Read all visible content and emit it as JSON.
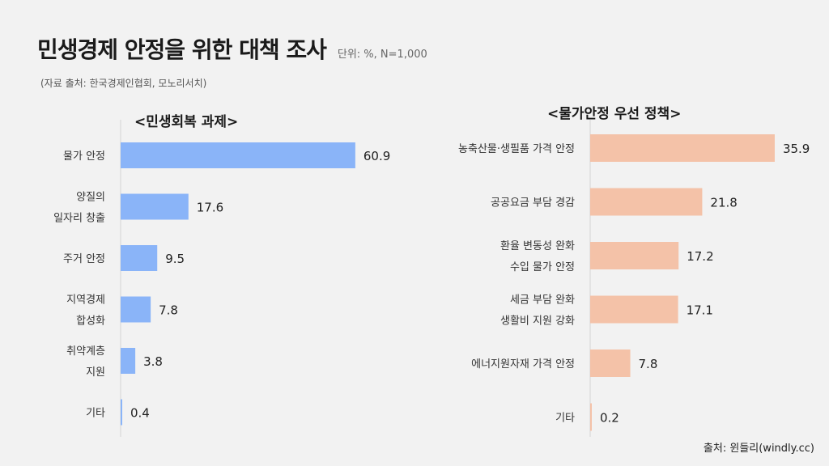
{
  "header": {
    "title": "민생경제 안정을 위한 대책 조사",
    "unit": "단위: %, N=1,000",
    "source": "(자료 출처: 한국경제인협회, 모노리서치)"
  },
  "footer": {
    "credit": "출처: 윈들리(windly.cc)"
  },
  "chart_data": [
    {
      "type": "bar",
      "orientation": "horizontal",
      "title": "<민생회복 과제>",
      "categories": [
        [
          "물가 안정"
        ],
        [
          "양질의",
          "일자리 창출"
        ],
        [
          "주거 안정"
        ],
        [
          "지역경제",
          "합성화"
        ],
        [
          "취약계층",
          "지원"
        ],
        [
          "기타"
        ]
      ],
      "values": [
        60.9,
        17.6,
        9.5,
        7.8,
        3.8,
        0.4
      ],
      "value_labels": [
        "60.9",
        "17.6",
        "9.5",
        "7.8",
        "3.8",
        "0.4"
      ],
      "color": "#8ab4f8",
      "xlim": [
        0,
        100
      ]
    },
    {
      "type": "bar",
      "orientation": "horizontal",
      "title": "<물가안정 우선 정책>",
      "categories": [
        [
          "농축산물·생필품 가격 안정"
        ],
        [
          "공공요금 부담 경감"
        ],
        [
          "환율 변동성 완화",
          "수입 물가 안정"
        ],
        [
          "세금 부담 완화",
          "생활비 지원 강화"
        ],
        [
          "에너지원자재 가격 안정"
        ],
        [
          "기타"
        ]
      ],
      "values": [
        35.9,
        21.8,
        17.2,
        17.1,
        7.8,
        0.2
      ],
      "value_labels": [
        "35.9",
        "21.8",
        "17.2",
        "17.1",
        "7.8",
        "0.2"
      ],
      "color": "#f4c2a8",
      "xlim": [
        0,
        60
      ]
    }
  ]
}
